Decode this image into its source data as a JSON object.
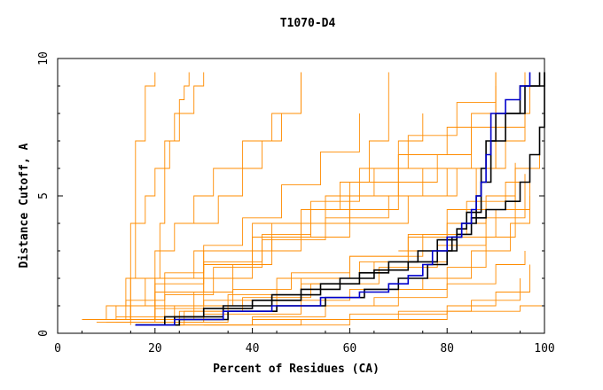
{
  "chart_data": {
    "type": "line",
    "title": "T1070-D4",
    "xlabel": "Percent of Residues (CA)",
    "ylabel": "Distance Cutoff, A",
    "xlim": [
      0,
      100
    ],
    "ylim": [
      0,
      10
    ],
    "x_ticks": [
      "0",
      "20",
      "40",
      "60",
      "80",
      "100"
    ],
    "y_ticks": [
      "0",
      "5",
      "10"
    ],
    "grid": false,
    "legend": "none",
    "colors": {
      "bundle": "#ff8c00",
      "highlight_black": "#000000",
      "highlight_blue": "#0000cc"
    },
    "background_series": [
      {
        "x": [
          15,
          15,
          20,
          30,
          44,
          60,
          75,
          88,
          96
        ],
        "y": [
          0.3,
          1,
          2,
          3,
          4,
          5,
          6,
          7,
          9.5
        ]
      },
      {
        "x": [
          5,
          10,
          18,
          28,
          40,
          55,
          70,
          85,
          97
        ],
        "y": [
          0.5,
          1,
          2,
          3,
          4,
          5,
          6,
          8,
          9.5
        ]
      },
      {
        "x": [
          10,
          14,
          20,
          24,
          28,
          32,
          38,
          44,
          50
        ],
        "y": [
          1,
          2,
          3,
          4,
          5,
          6,
          7,
          8,
          9.5
        ]
      },
      {
        "x": [
          15,
          15,
          16,
          18,
          20,
          22,
          25,
          28,
          30
        ],
        "y": [
          0.5,
          2,
          4,
          5,
          6,
          7,
          8,
          9,
          9.5
        ]
      },
      {
        "x": [
          20,
          20,
          21,
          22,
          23,
          24,
          25,
          26,
          27
        ],
        "y": [
          0.5,
          2,
          4,
          6,
          7,
          8,
          8.5,
          9,
          9.5
        ]
      },
      {
        "x": [
          15,
          15,
          16,
          18,
          20
        ],
        "y": [
          0.5,
          4,
          7,
          9,
          9.5
        ]
      },
      {
        "x": [
          10,
          20,
          30,
          40,
          50,
          60,
          65,
          70,
          75
        ],
        "y": [
          0.5,
          1,
          2,
          3,
          4,
          5,
          6,
          7,
          8
        ]
      },
      {
        "x": [
          8,
          20,
          35,
          50,
          65,
          80,
          90,
          97
        ],
        "y": [
          0.4,
          0.9,
          1.4,
          2,
          2.6,
          3.5,
          4.5,
          5.5
        ]
      },
      {
        "x": [
          10,
          25,
          45,
          60,
          75,
          85,
          93,
          97
        ],
        "y": [
          0.4,
          0.8,
          1.2,
          1.6,
          2,
          3,
          4,
          5
        ]
      },
      {
        "x": [
          12,
          30,
          50,
          65,
          80,
          90,
          96
        ],
        "y": [
          0.4,
          0.7,
          1,
          1.3,
          1.8,
          2.5,
          3
        ]
      },
      {
        "x": [
          40,
          60,
          80,
          95,
          100
        ],
        "y": [
          0.3,
          0.5,
          0.8,
          1,
          1.3
        ]
      },
      {
        "x": [
          20,
          40,
          60,
          80,
          90,
          97
        ],
        "y": [
          0.3,
          0.5,
          0.7,
          1,
          1.5,
          2.5
        ]
      },
      {
        "x": [
          15,
          30,
          45,
          60,
          75,
          85,
          92,
          97
        ],
        "y": [
          0.5,
          1.2,
          2,
          2.8,
          3.6,
          4.5,
          5.5,
          6.5
        ]
      },
      {
        "x": [
          10,
          20,
          30,
          40,
          50,
          60,
          70,
          80,
          90
        ],
        "y": [
          0.5,
          1.5,
          2.5,
          3.5,
          4.5,
          5.5,
          6.5,
          7.5,
          8.5
        ]
      },
      {
        "x": [
          6,
          12,
          20,
          30,
          42,
          55,
          68,
          80,
          92
        ],
        "y": [
          0.5,
          1,
          1.8,
          2.6,
          3.4,
          4.2,
          5,
          6,
          7
        ]
      },
      {
        "x": [
          18,
          35,
          50,
          62,
          72,
          80,
          86,
          90
        ],
        "y": [
          0.4,
          1,
          1.8,
          2.6,
          3.5,
          4.5,
          6,
          9
        ]
      },
      {
        "x": [
          12,
          22,
          32,
          42,
          52,
          62,
          72,
          82,
          90
        ],
        "y": [
          0.6,
          1.4,
          2.4,
          3.6,
          4.8,
          6,
          7.2,
          8.4,
          9.5
        ]
      },
      {
        "x": [
          25,
          40,
          55,
          70,
          80,
          88,
          94
        ],
        "y": [
          0.3,
          0.6,
          1,
          1.6,
          2.4,
          3.5,
          5
        ]
      },
      {
        "x": [
          30,
          50,
          70,
          85,
          95
        ],
        "y": [
          0.3,
          0.5,
          0.8,
          1.2,
          2
        ]
      },
      {
        "x": [
          8,
          14,
          22,
          30,
          38,
          46,
          54,
          62
        ],
        "y": [
          0.5,
          1.2,
          2.2,
          3.2,
          4.2,
          5.4,
          6.6,
          8
        ]
      },
      {
        "x": [
          20,
          28,
          36,
          44,
          52,
          58,
          64,
          68
        ],
        "y": [
          0.5,
          1.5,
          2.5,
          3.5,
          4.5,
          5.5,
          7,
          9.5
        ]
      },
      {
        "x": [
          16,
          26,
          38,
          52,
          66,
          78,
          88,
          96
        ],
        "y": [
          0.3,
          0.8,
          1.3,
          1.8,
          2.4,
          3.2,
          4.2,
          5.8
        ]
      },
      {
        "x": [
          14,
          24,
          36,
          48,
          60,
          72,
          84,
          94
        ],
        "y": [
          0.4,
          1,
          1.6,
          2.2,
          2.8,
          3.6,
          4.8,
          6.2
        ]
      },
      {
        "x": [
          28,
          33,
          38,
          42,
          46,
          50
        ],
        "y": [
          4,
          5,
          6,
          7,
          8,
          9.5
        ]
      },
      {
        "x": [
          50,
          60,
          70,
          78,
          85,
          90
        ],
        "y": [
          3.5,
          4.5,
          5.5,
          6.5,
          7.5,
          9.5
        ]
      },
      {
        "x": [
          60,
          72,
          82,
          90,
          96
        ],
        "y": [
          4,
          5,
          6,
          7.5,
          9
        ]
      },
      {
        "x": [
          70,
          80,
          88,
          94,
          99
        ],
        "y": [
          3,
          4,
          5,
          6,
          7
        ]
      }
    ],
    "series": [
      {
        "color": "black",
        "x": [
          16,
          22,
          30,
          40,
          50,
          58,
          65,
          72,
          78,
          81,
          83,
          86,
          87,
          88,
          90,
          95,
          99
        ],
        "y": [
          0.3,
          0.6,
          0.9,
          1.2,
          1.6,
          2.0,
          2.3,
          2.6,
          3.0,
          3.5,
          4.0,
          5.0,
          6.0,
          7.0,
          8.0,
          9.0,
          9.5
        ]
      },
      {
        "color": "black",
        "x": [
          16,
          25,
          35,
          45,
          55,
          63,
          70,
          76,
          80,
          82,
          85,
          88,
          92,
          95,
          97,
          99,
          100
        ],
        "y": [
          0.3,
          0.5,
          0.8,
          1.0,
          1.3,
          1.6,
          2.0,
          2.5,
          3.0,
          3.6,
          4.2,
          4.5,
          4.8,
          5.5,
          6.5,
          7.5,
          9.5
        ]
      },
      {
        "color": "black",
        "x": [
          16,
          24,
          34,
          44,
          54,
          62,
          68,
          74,
          78,
          82,
          84,
          87,
          89,
          92,
          96,
          100
        ],
        "y": [
          0.3,
          0.6,
          1.0,
          1.4,
          1.8,
          2.2,
          2.6,
          3.0,
          3.4,
          3.8,
          4.4,
          5.5,
          7.0,
          8.0,
          9.0,
          9.5
        ]
      },
      {
        "color": "blue",
        "x": [
          16,
          24,
          34,
          44,
          54,
          62,
          68,
          72,
          75,
          77,
          80,
          83,
          85,
          86,
          87,
          88,
          89,
          92,
          95,
          97
        ],
        "y": [
          0.3,
          0.5,
          0.8,
          1.0,
          1.3,
          1.5,
          1.8,
          2.1,
          2.5,
          3.0,
          3.5,
          4.0,
          4.5,
          5.0,
          5.5,
          6.5,
          8.0,
          8.5,
          9.0,
          9.5
        ]
      }
    ]
  }
}
